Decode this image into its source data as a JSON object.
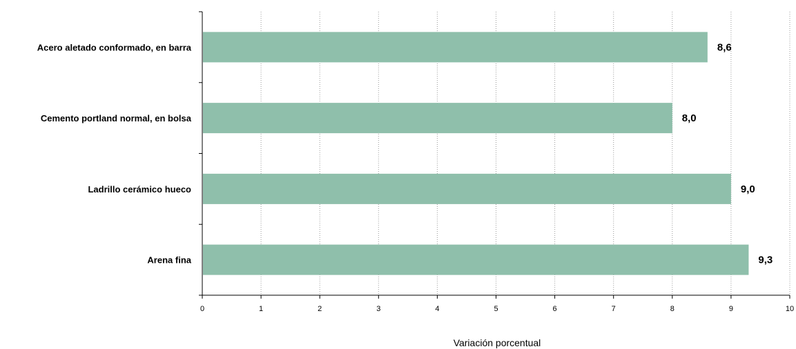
{
  "chart_data": {
    "type": "bar",
    "orientation": "horizontal",
    "categories": [
      "Acero aletado conformado, en barra",
      "Cemento portland normal, en bolsa",
      "Ladrillo cerámico hueco",
      "Arena fina"
    ],
    "values": [
      8.6,
      8.0,
      9.0,
      9.3
    ],
    "value_labels": [
      "8,6",
      "8,0",
      "9,0",
      "9,3"
    ],
    "xlabel": "Variación porcentual",
    "xlim": [
      0,
      10
    ],
    "xticks": [
      "0",
      "1",
      "2",
      "3",
      "4",
      "5",
      "6",
      "7",
      "8",
      "9",
      "10"
    ],
    "grid": "vertical dotted",
    "bar_color": "#8fbfab"
  }
}
